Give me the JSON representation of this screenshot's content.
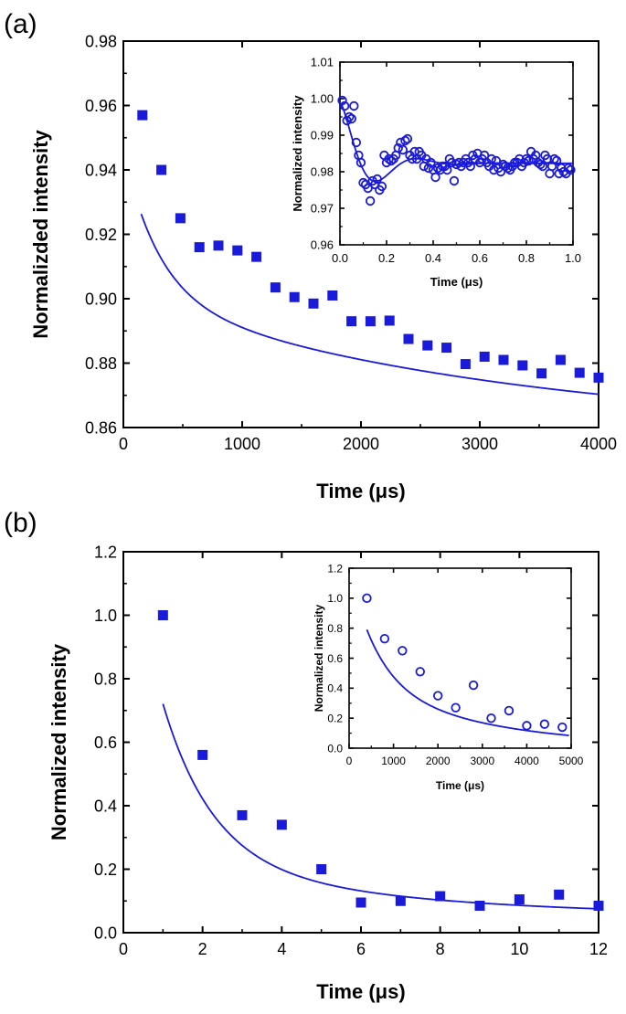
{
  "panels": {
    "a_label": "(a)",
    "b_label": "(b)"
  },
  "chart_data": [
    {
      "id": "a-main",
      "type": "scatter",
      "title": "",
      "xlabel": "Time (μs)",
      "ylabel": "Normalizded intensity",
      "xlim": [
        0,
        4000
      ],
      "ylim": [
        0.86,
        0.98
      ],
      "xticks": [
        0,
        1000,
        2000,
        3000,
        4000
      ],
      "yticks": [
        0.86,
        0.88,
        0.9,
        0.92,
        0.94,
        0.96,
        0.98
      ],
      "x": [
        160,
        320,
        480,
        640,
        800,
        960,
        1120,
        1280,
        1440,
        1600,
        1760,
        1920,
        2080,
        2240,
        2400,
        2560,
        2720,
        2880,
        3040,
        3200,
        3360,
        3520,
        3680,
        3840,
        4000
      ],
      "y": [
        0.957,
        0.94,
        0.925,
        0.916,
        0.9165,
        0.915,
        0.913,
        0.9035,
        0.9005,
        0.8985,
        0.901,
        0.893,
        0.893,
        0.8932,
        0.8875,
        0.8855,
        0.8848,
        0.8797,
        0.882,
        0.881,
        0.8793,
        0.8768,
        0.881,
        0.877,
        0.8755
      ],
      "fit": {
        "model": "biexp",
        "a1": 0.045,
        "t1": 300,
        "a2": 0.043,
        "t2": 3200,
        "c": 0.858
      }
    },
    {
      "id": "a-inset",
      "type": "scatter",
      "title": "",
      "xlabel": "Time (μs)",
      "ylabel": "Normalized intensity",
      "xlim": [
        0,
        1.0
      ],
      "ylim": [
        0.96,
        1.01
      ],
      "xticks": [
        0.0,
        0.2,
        0.4,
        0.6,
        0.8,
        1.0
      ],
      "yticks": [
        0.96,
        0.97,
        0.98,
        0.99,
        1.0,
        1.01
      ],
      "x": [
        0.01,
        0.02,
        0.03,
        0.04,
        0.05,
        0.06,
        0.07,
        0.08,
        0.09,
        0.1,
        0.11,
        0.12,
        0.13,
        0.14,
        0.15,
        0.16,
        0.17,
        0.18,
        0.19,
        0.2,
        0.21,
        0.22,
        0.23,
        0.24,
        0.25,
        0.26,
        0.27,
        0.28,
        0.29,
        0.3,
        0.31,
        0.32,
        0.33,
        0.34,
        0.35,
        0.36,
        0.37,
        0.38,
        0.39,
        0.4,
        0.41,
        0.42,
        0.43,
        0.44,
        0.45,
        0.46,
        0.47,
        0.48,
        0.49,
        0.5,
        0.51,
        0.52,
        0.53,
        0.54,
        0.55,
        0.56,
        0.57,
        0.58,
        0.59,
        0.6,
        0.61,
        0.62,
        0.63,
        0.64,
        0.65,
        0.66,
        0.67,
        0.68,
        0.69,
        0.7,
        0.71,
        0.72,
        0.73,
        0.74,
        0.75,
        0.76,
        0.77,
        0.78,
        0.79,
        0.8,
        0.81,
        0.82,
        0.83,
        0.84,
        0.85,
        0.86,
        0.87,
        0.88,
        0.89,
        0.9,
        0.91,
        0.92,
        0.93,
        0.94,
        0.95,
        0.96,
        0.97,
        0.98,
        0.99
      ],
      "y": [
        0.9995,
        0.998,
        0.994,
        0.995,
        0.9945,
        0.998,
        0.988,
        0.9845,
        0.9825,
        0.977,
        0.9765,
        0.9755,
        0.972,
        0.9775,
        0.9765,
        0.978,
        0.975,
        0.976,
        0.9845,
        0.9825,
        0.9835,
        0.983,
        0.9835,
        0.9845,
        0.9865,
        0.988,
        0.986,
        0.9885,
        0.989,
        0.9845,
        0.9835,
        0.9855,
        0.9835,
        0.9855,
        0.9845,
        0.9815,
        0.9835,
        0.981,
        0.9825,
        0.9805,
        0.9785,
        0.981,
        0.9805,
        0.9815,
        0.9815,
        0.9805,
        0.9835,
        0.9825,
        0.9775,
        0.982,
        0.9825,
        0.9815,
        0.9825,
        0.9835,
        0.9825,
        0.9815,
        0.9845,
        0.9835,
        0.985,
        0.9825,
        0.9835,
        0.9845,
        0.9825,
        0.9815,
        0.9835,
        0.9805,
        0.983,
        0.981,
        0.98,
        0.982,
        0.9815,
        0.981,
        0.9805,
        0.9815,
        0.9825,
        0.9825,
        0.9835,
        0.9815,
        0.9825,
        0.9835,
        0.983,
        0.9855,
        0.9835,
        0.9845,
        0.9825,
        0.982,
        0.9815,
        0.9845,
        0.9835,
        0.9795,
        0.9815,
        0.9835,
        0.983,
        0.9795,
        0.981,
        0.98,
        0.9795,
        0.981,
        0.9805
      ],
      "fit": {
        "model": "damped",
        "c": 0.9823,
        "A": 0.0172,
        "tau": 0.13,
        "omega": 17.95,
        "phi": 0.0
      }
    },
    {
      "id": "b-main",
      "type": "scatter",
      "title": "",
      "xlabel": "Time (μs)",
      "ylabel": "Normalized intensity",
      "xlim": [
        0,
        12
      ],
      "ylim": [
        0.0,
        1.2
      ],
      "xticks": [
        0,
        2,
        4,
        6,
        8,
        10,
        12
      ],
      "yticks": [
        0.0,
        0.2,
        0.4,
        0.6,
        0.8,
        1.0,
        1.2
      ],
      "x": [
        1,
        2,
        3,
        4,
        5,
        6,
        7,
        8,
        9,
        10,
        11,
        12
      ],
      "y": [
        1.0,
        0.56,
        0.37,
        0.34,
        0.2,
        0.095,
        0.1,
        0.115,
        0.085,
        0.105,
        0.12,
        0.085
      ],
      "fit": {
        "model": "biexp",
        "a1": 1.1,
        "t1": 1.28,
        "a2": 0.2,
        "t2": 6.0,
        "c": 0.048
      }
    },
    {
      "id": "b-inset",
      "type": "scatter",
      "title": "",
      "xlabel": "Time (μs)",
      "ylabel": "Normalized intensity",
      "xlim": [
        0,
        5000
      ],
      "ylim": [
        0.0,
        1.2
      ],
      "xticks": [
        0,
        1000,
        2000,
        3000,
        4000,
        5000
      ],
      "yticks": [
        0.0,
        0.2,
        0.4,
        0.6,
        0.8,
        1.0,
        1.2
      ],
      "x": [
        400,
        800,
        1200,
        1600,
        2000,
        2400,
        2800,
        3200,
        3600,
        4000,
        4400,
        4800
      ],
      "y": [
        1.0,
        0.73,
        0.65,
        0.51,
        0.35,
        0.27,
        0.42,
        0.2,
        0.25,
        0.15,
        0.16,
        0.14
      ],
      "fit": {
        "model": "biexp",
        "a1": 0.75,
        "t1": 650,
        "a2": 0.44,
        "t2": 3000,
        "c": 0.0
      }
    }
  ],
  "colors": {
    "series": "#1a1adb",
    "axis": "#000000",
    "background": "#ffffff"
  }
}
